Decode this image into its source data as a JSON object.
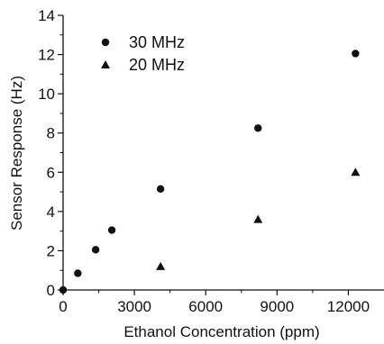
{
  "chart_data": {
    "type": "scatter",
    "xlabel": "Ethanol Concentration (ppm)",
    "ylabel": "Sensor Response (Hz)",
    "xlim": [
      0,
      13500
    ],
    "ylim": [
      0,
      14
    ],
    "x_ticks": [
      0,
      3000,
      6000,
      9000,
      12000
    ],
    "y_ticks": [
      0,
      2,
      4,
      6,
      8,
      10,
      12,
      14
    ],
    "grid": false,
    "legend_position": "top-left",
    "series": [
      {
        "name": "30 MHz",
        "marker": "circle",
        "points": [
          {
            "x": 0,
            "y": 0
          },
          {
            "x": 620,
            "y": 0.85
          },
          {
            "x": 1370,
            "y": 2.05
          },
          {
            "x": 2050,
            "y": 3.05
          },
          {
            "x": 4100,
            "y": 5.15
          },
          {
            "x": 8200,
            "y": 8.25
          },
          {
            "x": 12300,
            "y": 12.05
          }
        ]
      },
      {
        "name": "20 MHz",
        "marker": "triangle",
        "points": [
          {
            "x": 4100,
            "y": 1.2
          },
          {
            "x": 8200,
            "y": 3.6
          },
          {
            "x": 12300,
            "y": 6.0
          }
        ]
      }
    ]
  }
}
